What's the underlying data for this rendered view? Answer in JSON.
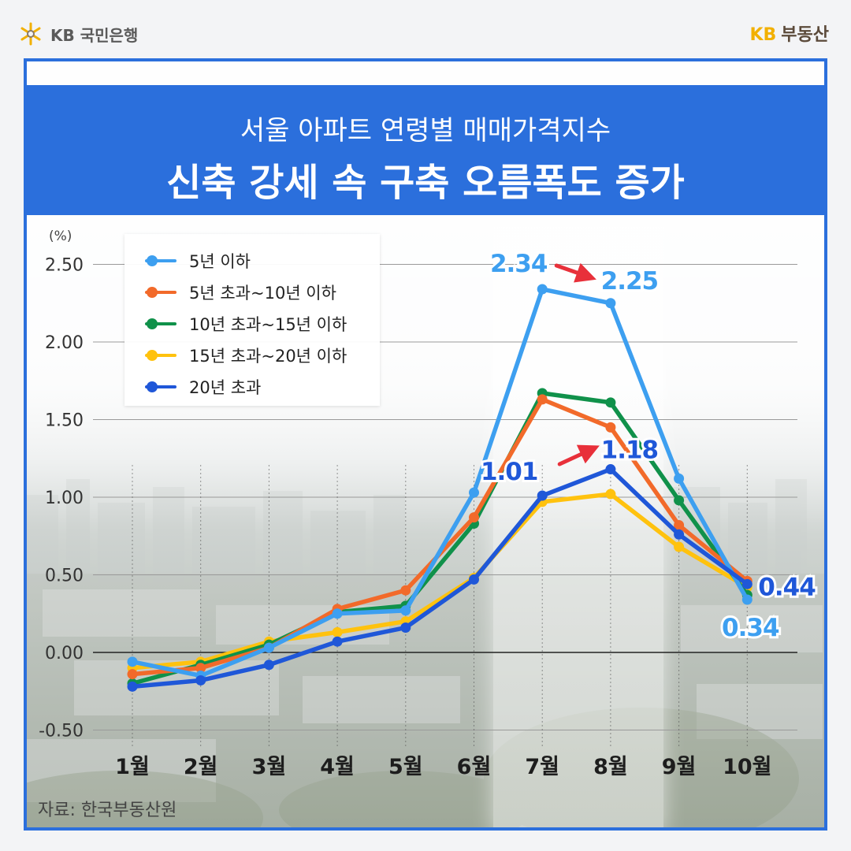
{
  "header": {
    "bank_logo_text": "KB 국민은행",
    "brand_kb": "KB",
    "brand_name": "부동산"
  },
  "title": {
    "subtitle": "서울 아파트 연령별 매매가격지수",
    "headline": "신축 강세 속 구축 오름폭도 증가"
  },
  "source": "자료: 한국부동산원",
  "colors": {
    "accent": "#2b6fdc",
    "highlight_arrow": "#e8303a"
  },
  "chart_data": {
    "type": "line",
    "ylabel": "(%)",
    "ylim": [
      -0.5,
      2.5
    ],
    "yticks": [
      "2.50",
      "2.00",
      "1.50",
      "1.00",
      "0.50",
      "0.00",
      "-0.50"
    ],
    "ytick_values": [
      2.5,
      2.0,
      1.5,
      1.0,
      0.5,
      0.0,
      -0.5
    ],
    "categories": [
      "1월",
      "2월",
      "3월",
      "4월",
      "5월",
      "6월",
      "7월",
      "8월",
      "9월",
      "10월"
    ],
    "grid": true,
    "legend_position": "top-left",
    "highlight_range": [
      "7월",
      "8월"
    ],
    "series": [
      {
        "name": "5년 이하",
        "color": "#3d9ff0",
        "values": [
          -0.06,
          -0.15,
          0.03,
          0.25,
          0.27,
          1.03,
          2.34,
          2.25,
          1.12,
          0.34
        ]
      },
      {
        "name": "5년 초과~10년 이하",
        "color": "#f26a2a",
        "values": [
          -0.14,
          -0.1,
          0.03,
          0.28,
          0.4,
          0.87,
          1.63,
          1.45,
          0.82,
          0.46
        ]
      },
      {
        "name": "10년 초과~15년 이하",
        "color": "#10914a",
        "values": [
          -0.2,
          -0.08,
          0.05,
          0.26,
          0.3,
          0.83,
          1.67,
          1.61,
          0.98,
          0.37
        ]
      },
      {
        "name": "15년 초과~20년 이하",
        "color": "#ffc20e",
        "values": [
          -0.1,
          -0.06,
          0.07,
          0.13,
          0.2,
          0.48,
          0.97,
          1.02,
          0.68,
          0.42
        ]
      },
      {
        "name": "20년 초과",
        "color": "#1f57d8",
        "values": [
          -0.22,
          -0.18,
          -0.08,
          0.07,
          0.16,
          0.47,
          1.01,
          1.18,
          0.76,
          0.44
        ]
      }
    ],
    "annotations": [
      {
        "series": 0,
        "index": 6,
        "label": "2.34"
      },
      {
        "series": 0,
        "index": 7,
        "label": "2.25"
      },
      {
        "series": 4,
        "index": 6,
        "label": "1.01"
      },
      {
        "series": 4,
        "index": 7,
        "label": "1.18"
      },
      {
        "series": 4,
        "index": 9,
        "label": "0.44"
      },
      {
        "series": 0,
        "index": 9,
        "label": "0.34"
      }
    ]
  }
}
